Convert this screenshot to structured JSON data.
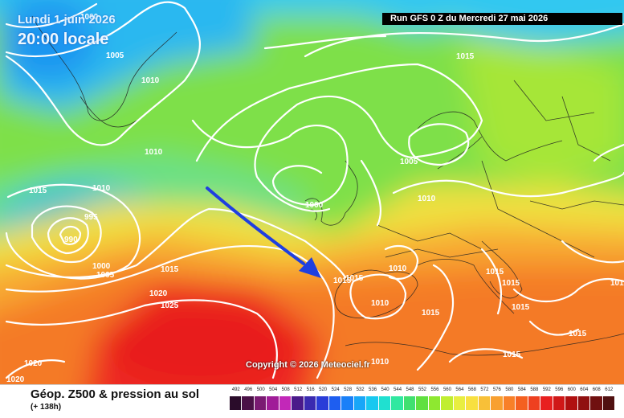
{
  "header": {
    "date_label": "Lundi 1 juin 2026",
    "time_label": "20:00 locale",
    "run_label": "Run GFS 0 Z du Mercredi 27 mai 2026"
  },
  "copyright": "Copyright © 2026 Meteociel.fr",
  "footer": {
    "title": "Géop. Z500 & pression au sol",
    "subtitle": "(+ 138h)"
  },
  "legend": {
    "values": [
      "492",
      "496",
      "500",
      "504",
      "508",
      "512",
      "516",
      "520",
      "524",
      "528",
      "532",
      "536",
      "540",
      "544",
      "548",
      "552",
      "556",
      "560",
      "564",
      "568",
      "572",
      "576",
      "580",
      "584",
      "588",
      "592",
      "596",
      "600",
      "604",
      "608",
      "612"
    ],
    "colors": [
      "#2a0c2a",
      "#4a1046",
      "#7a1a72",
      "#a01c98",
      "#c228b8",
      "#4a1a8a",
      "#3a2ab0",
      "#2a3cd8",
      "#1e5ef0",
      "#1a80f8",
      "#18a6f8",
      "#18c8f0",
      "#20e0d0",
      "#30e8a0",
      "#40e070",
      "#60e040",
      "#8ee830",
      "#c0ee30",
      "#e8ee40",
      "#f8e040",
      "#f8c038",
      "#f8a030",
      "#f88028",
      "#f46020",
      "#ee4020",
      "#e82020",
      "#d01818",
      "#b01010",
      "#901010",
      "#701010",
      "#501010"
    ]
  },
  "isobars": [
    "1000",
    "1005",
    "1010",
    "1015",
    "1020",
    "1025",
    "995",
    "990",
    "1015",
    "1010",
    "1005",
    "1000",
    "1015",
    "1010",
    "1005",
    "1015",
    "1010",
    "1000",
    "1010",
    "1015",
    "1015",
    "1015",
    "1010",
    "1015",
    "1015",
    "1015",
    "1015",
    "1020",
    "1020",
    "1010",
    "1015"
  ]
}
